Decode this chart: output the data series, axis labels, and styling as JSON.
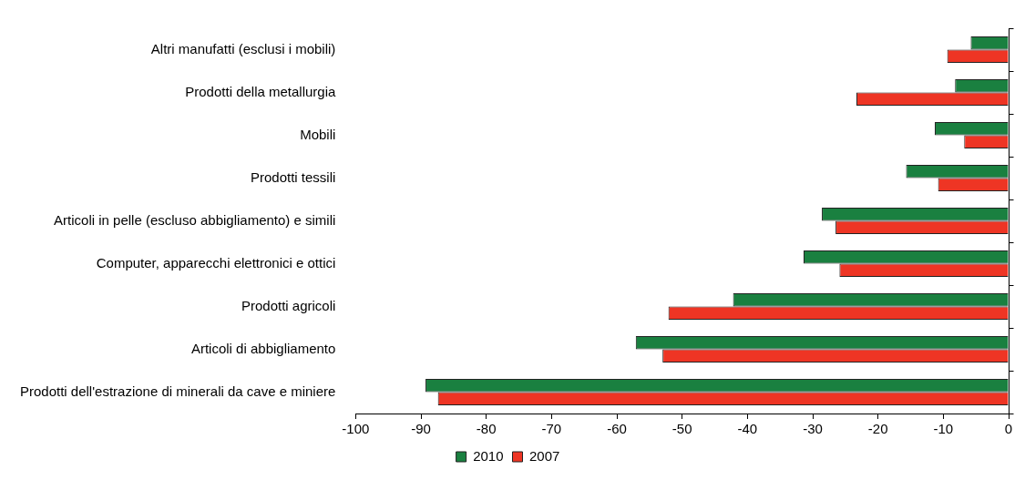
{
  "chart_data": {
    "type": "bar",
    "orientation": "horizontal",
    "categories": [
      "Altri manufatti (esclusi i mobili)",
      "Prodotti della metallurgia",
      "Mobili",
      "Prodotti tessili",
      "Articoli in pelle (escluso abbigliamento) e simili",
      "Computer, apparecchi elettronici e ottici",
      "Prodotti agricoli",
      "Articoli di abbigliamento",
      "Prodotti dell'estrazione di minerali da cave e miniere"
    ],
    "series": [
      {
        "name": "2010",
        "color": "#1a8040",
        "values": [
          -5.8,
          -8.2,
          -11.3,
          -15.7,
          -28.6,
          -31.4,
          -42.2,
          -57.1,
          -89.3
        ]
      },
      {
        "name": "2007",
        "color": "#ee3524",
        "values": [
          -9.4,
          -23.3,
          -6.8,
          -10.8,
          -26.5,
          -25.9,
          -52.1,
          -53.0,
          -87.4
        ]
      }
    ],
    "xlim": [
      -100,
      0
    ],
    "xticks": [
      -100,
      -90,
      -80,
      -70,
      -60,
      -50,
      -40,
      -30,
      -20,
      -10,
      0
    ],
    "grid": false,
    "legend": "bottom"
  }
}
